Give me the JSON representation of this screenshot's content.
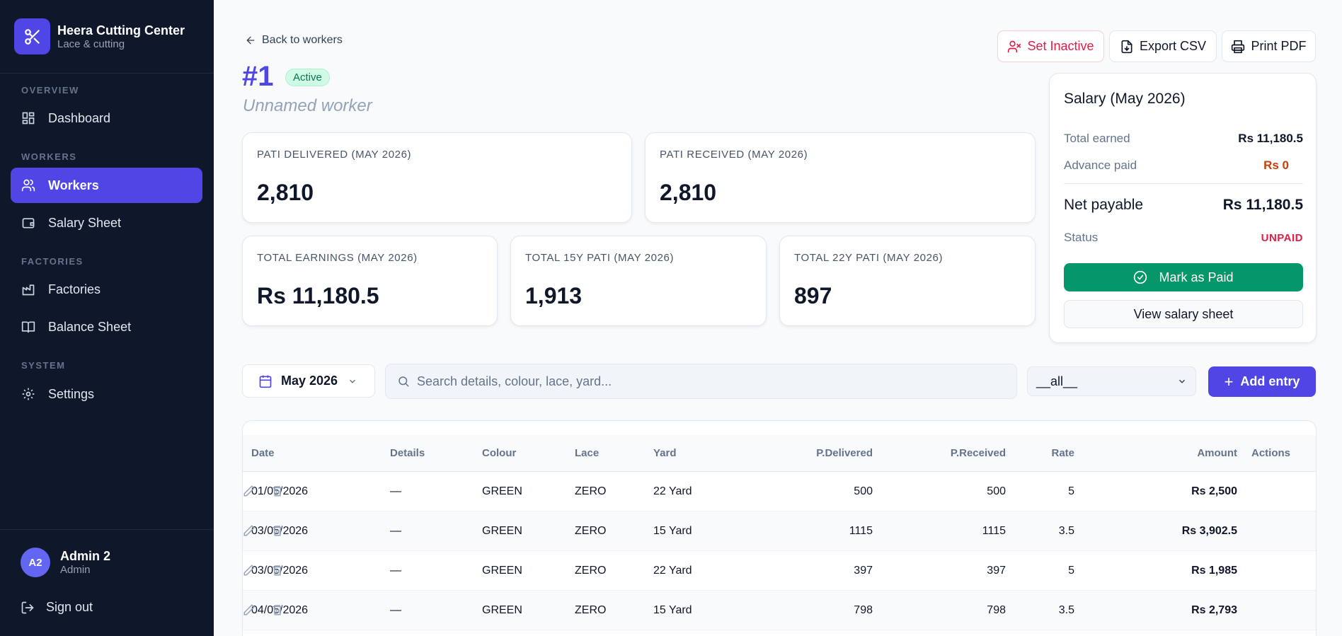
{
  "brand": {
    "title": "Heera Cutting Center",
    "subtitle": "Lace & cutting"
  },
  "sidebar": {
    "sections": {
      "overview": "OVERVIEW",
      "workers": "WORKERS",
      "factories": "FACTORIES",
      "system": "SYSTEM"
    },
    "items": {
      "dashboard": "Dashboard",
      "workers": "Workers",
      "salary_sheet": "Salary Sheet",
      "factories": "Factories",
      "balance_sheet": "Balance Sheet",
      "settings": "Settings"
    },
    "user": {
      "initials": "A2",
      "name": "Admin 2",
      "role": "Admin"
    },
    "sign_out": "Sign out"
  },
  "header": {
    "back_label": "Back to workers",
    "worker_id": "#1",
    "status": "Active",
    "worker_name": "Unnamed worker",
    "buttons": {
      "set_inactive": "Set Inactive",
      "export_csv": "Export CSV",
      "print_pdf": "Print PDF"
    }
  },
  "stats": [
    {
      "label": "PATI DELIVERED (MAY 2026)",
      "value": "2,810"
    },
    {
      "label": "PATI RECEIVED (MAY 2026)",
      "value": "2,810"
    },
    {
      "label": "TOTAL EARNINGS (MAY 2026)",
      "value": "Rs 11,180.5"
    },
    {
      "label": "TOTAL 15Y PATI (MAY 2026)",
      "value": "1,913"
    },
    {
      "label": "TOTAL 22Y PATI (MAY 2026)",
      "value": "897"
    }
  ],
  "salary": {
    "title": "Salary (May 2026)",
    "total_earned_label": "Total earned",
    "total_earned": "Rs 11,180.5",
    "advance_label": "Advance paid",
    "advance": "Rs 0",
    "net_label": "Net payable",
    "net": "Rs 11,180.5",
    "status_label": "Status",
    "status": "UNPAID",
    "mark_paid": "Mark as Paid",
    "view_sheet": "View salary sheet"
  },
  "filters": {
    "month": "May 2026",
    "search_placeholder": "Search details, colour, lace, yard...",
    "select_value": "__all__",
    "add_entry": "Add entry"
  },
  "table": {
    "columns": {
      "date": "Date",
      "details": "Details",
      "colour": "Colour",
      "lace": "Lace",
      "yard": "Yard",
      "delivered": "P.Delivered",
      "received": "P.Received",
      "rate": "Rate",
      "amount": "Amount",
      "actions": "Actions"
    },
    "rows": [
      {
        "date": "01/05/2026",
        "details": "—",
        "colour": "GREEN",
        "lace": "ZERO",
        "yard": "22 Yard",
        "delivered": "500",
        "received": "500",
        "rate": "5",
        "amount": "Rs 2,500"
      },
      {
        "date": "03/05/2026",
        "details": "—",
        "colour": "GREEN",
        "lace": "ZERO",
        "yard": "15 Yard",
        "delivered": "1115",
        "received": "1115",
        "rate": "3.5",
        "amount": "Rs 3,902.5"
      },
      {
        "date": "03/05/2026",
        "details": "—",
        "colour": "GREEN",
        "lace": "ZERO",
        "yard": "22 Yard",
        "delivered": "397",
        "received": "397",
        "rate": "5",
        "amount": "Rs 1,985"
      },
      {
        "date": "04/05/2026",
        "details": "—",
        "colour": "GREEN",
        "lace": "ZERO",
        "yard": "15 Yard",
        "delivered": "798",
        "received": "798",
        "rate": "3.5",
        "amount": "Rs 2,793"
      }
    ]
  },
  "colors": {
    "accent": "#4f46e5",
    "sidebar_bg": "#0f172a",
    "success": "#059669",
    "danger": "#e11d48",
    "advance": "#c2410c"
  }
}
